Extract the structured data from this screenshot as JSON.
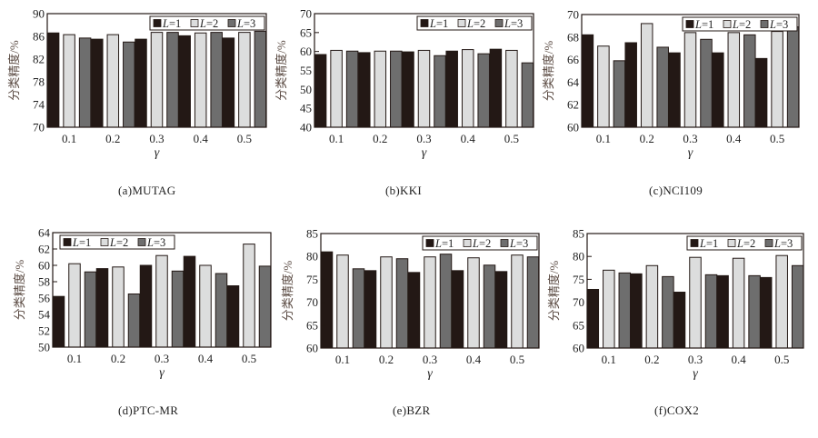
{
  "colors": {
    "L1": "#231815",
    "L2": "#dcdddd",
    "L3": "#6e6e6e",
    "axis": "#231815",
    "ylabel": "#5a4a42"
  },
  "chart_data": [
    {
      "id": "a",
      "type": "bar",
      "caption": "(a)MUTAG",
      "xlabel": "γ",
      "ylabel": "分类精度/%",
      "categories": [
        "0.1",
        "0.2",
        "0.3",
        "0.4",
        "0.5"
      ],
      "ylim": [
        70,
        90
      ],
      "yticks": [
        "70",
        "74",
        "78",
        "82",
        "86",
        "90"
      ],
      "ytick_values": [
        70,
        74,
        78,
        82,
        86,
        90
      ],
      "legend_position": "top-right",
      "series": [
        {
          "name": "L=1",
          "prefix": "L",
          "suffix": "=1",
          "values": [
            86.6,
            85.5,
            85.5,
            86.1,
            85.7
          ]
        },
        {
          "name": "L=2",
          "prefix": "L",
          "suffix": "=2",
          "values": [
            86.3,
            86.3,
            86.7,
            86.6,
            86.7
          ]
        },
        {
          "name": "L=3",
          "prefix": "L",
          "suffix": "=3",
          "values": [
            85.7,
            85.0,
            86.7,
            86.7,
            86.9
          ]
        }
      ]
    },
    {
      "id": "b",
      "type": "bar",
      "caption": "(b)KKI",
      "xlabel": "γ",
      "ylabel": "分类精度/%",
      "categories": [
        "0.1",
        "0.2",
        "0.3",
        "0.4",
        "0.5"
      ],
      "ylim": [
        40,
        70
      ],
      "yticks": [
        "40",
        "45",
        "50",
        "55",
        "60",
        "65",
        "70"
      ],
      "ytick_values": [
        40,
        45,
        50,
        55,
        60,
        65,
        70
      ],
      "legend_position": "top-right",
      "series": [
        {
          "name": "L=1",
          "prefix": "L",
          "suffix": "=1",
          "values": [
            59.2,
            59.7,
            59.9,
            60.1,
            60.6
          ]
        },
        {
          "name": "L=2",
          "prefix": "L",
          "suffix": "=2",
          "values": [
            60.3,
            60.1,
            60.3,
            60.5,
            60.3
          ]
        },
        {
          "name": "L=3",
          "prefix": "L",
          "suffix": "=3",
          "values": [
            60.1,
            60.1,
            58.9,
            59.4,
            57.0
          ]
        }
      ]
    },
    {
      "id": "c",
      "type": "bar",
      "caption": "(c)NCI109",
      "xlabel": "γ",
      "ylabel": "分类精度/%",
      "categories": [
        "0.1",
        "0.2",
        "0.3",
        "0.4",
        "0.5"
      ],
      "ylim": [
        60,
        70
      ],
      "yticks": [
        "60",
        "62",
        "64",
        "66",
        "68",
        "70"
      ],
      "ytick_values": [
        60,
        62,
        64,
        66,
        68,
        70
      ],
      "legend_position": "top-right",
      "series": [
        {
          "name": "L=1",
          "prefix": "L",
          "suffix": "=1",
          "values": [
            68.2,
            67.5,
            66.6,
            66.6,
            66.1
          ]
        },
        {
          "name": "L=2",
          "prefix": "L",
          "suffix": "=2",
          "values": [
            67.2,
            69.2,
            68.4,
            68.4,
            68.5
          ]
        },
        {
          "name": "L=3",
          "prefix": "L",
          "suffix": "=3",
          "values": [
            65.9,
            67.1,
            67.8,
            68.2,
            68.9
          ]
        }
      ]
    },
    {
      "id": "d",
      "type": "bar",
      "caption": "(d)PTC-MR",
      "xlabel": "γ",
      "ylabel": "分类精度/%",
      "categories": [
        "0.1",
        "0.2",
        "0.3",
        "0.4",
        "0.5"
      ],
      "ylim": [
        50,
        64
      ],
      "yticks": [
        "50",
        "52",
        "54",
        "56",
        "58",
        "60",
        "62",
        "64"
      ],
      "ytick_values": [
        50,
        52,
        54,
        56,
        58,
        60,
        62,
        64
      ],
      "legend_position": "top-left",
      "series": [
        {
          "name": "L=1",
          "prefix": "L",
          "suffix": "=1",
          "values": [
            56.2,
            59.6,
            60.0,
            61.1,
            57.5
          ]
        },
        {
          "name": "L=2",
          "prefix": "L",
          "suffix": "=2",
          "values": [
            60.2,
            59.8,
            61.2,
            60.0,
            62.6
          ]
        },
        {
          "name": "L=3",
          "prefix": "L",
          "suffix": "=3",
          "values": [
            59.2,
            56.5,
            59.3,
            59.0,
            59.9
          ]
        }
      ]
    },
    {
      "id": "e",
      "type": "bar",
      "caption": "(e)BZR",
      "xlabel": "γ",
      "ylabel": "分类精度/%",
      "categories": [
        "0.1",
        "0.2",
        "0.3",
        "0.4",
        "0.5"
      ],
      "ylim": [
        60,
        85
      ],
      "yticks": [
        "60",
        "65",
        "70",
        "75",
        "80",
        "85"
      ],
      "ytick_values": [
        60,
        65,
        70,
        75,
        80,
        85
      ],
      "legend_position": "top-right",
      "series": [
        {
          "name": "L=1",
          "prefix": "L",
          "suffix": "=1",
          "values": [
            81.0,
            76.9,
            76.5,
            76.9,
            76.7
          ]
        },
        {
          "name": "L=2",
          "prefix": "L",
          "suffix": "=2",
          "values": [
            80.3,
            79.9,
            79.9,
            79.7,
            80.3
          ]
        },
        {
          "name": "L=3",
          "prefix": "L",
          "suffix": "=3",
          "values": [
            77.3,
            79.5,
            80.5,
            78.1,
            79.9
          ]
        }
      ]
    },
    {
      "id": "f",
      "type": "bar",
      "caption": "(f)COX2",
      "xlabel": "γ",
      "ylabel": "分类精度/%",
      "categories": [
        "0.1",
        "0.2",
        "0.3",
        "0.4",
        "0.5"
      ],
      "ylim": [
        60,
        85
      ],
      "yticks": [
        "60",
        "65",
        "70",
        "75",
        "80",
        "85"
      ],
      "ytick_values": [
        60,
        65,
        70,
        75,
        80,
        85
      ],
      "legend_position": "top-right",
      "series": [
        {
          "name": "L=1",
          "prefix": "L",
          "suffix": "=1",
          "values": [
            72.8,
            76.2,
            72.2,
            75.8,
            75.4
          ]
        },
        {
          "name": "L=2",
          "prefix": "L",
          "suffix": "=2",
          "values": [
            77.0,
            78.0,
            79.8,
            79.6,
            80.2
          ]
        },
        {
          "name": "L=3",
          "prefix": "L",
          "suffix": "=3",
          "values": [
            76.4,
            75.6,
            76.0,
            75.8,
            78.0
          ]
        }
      ]
    }
  ]
}
